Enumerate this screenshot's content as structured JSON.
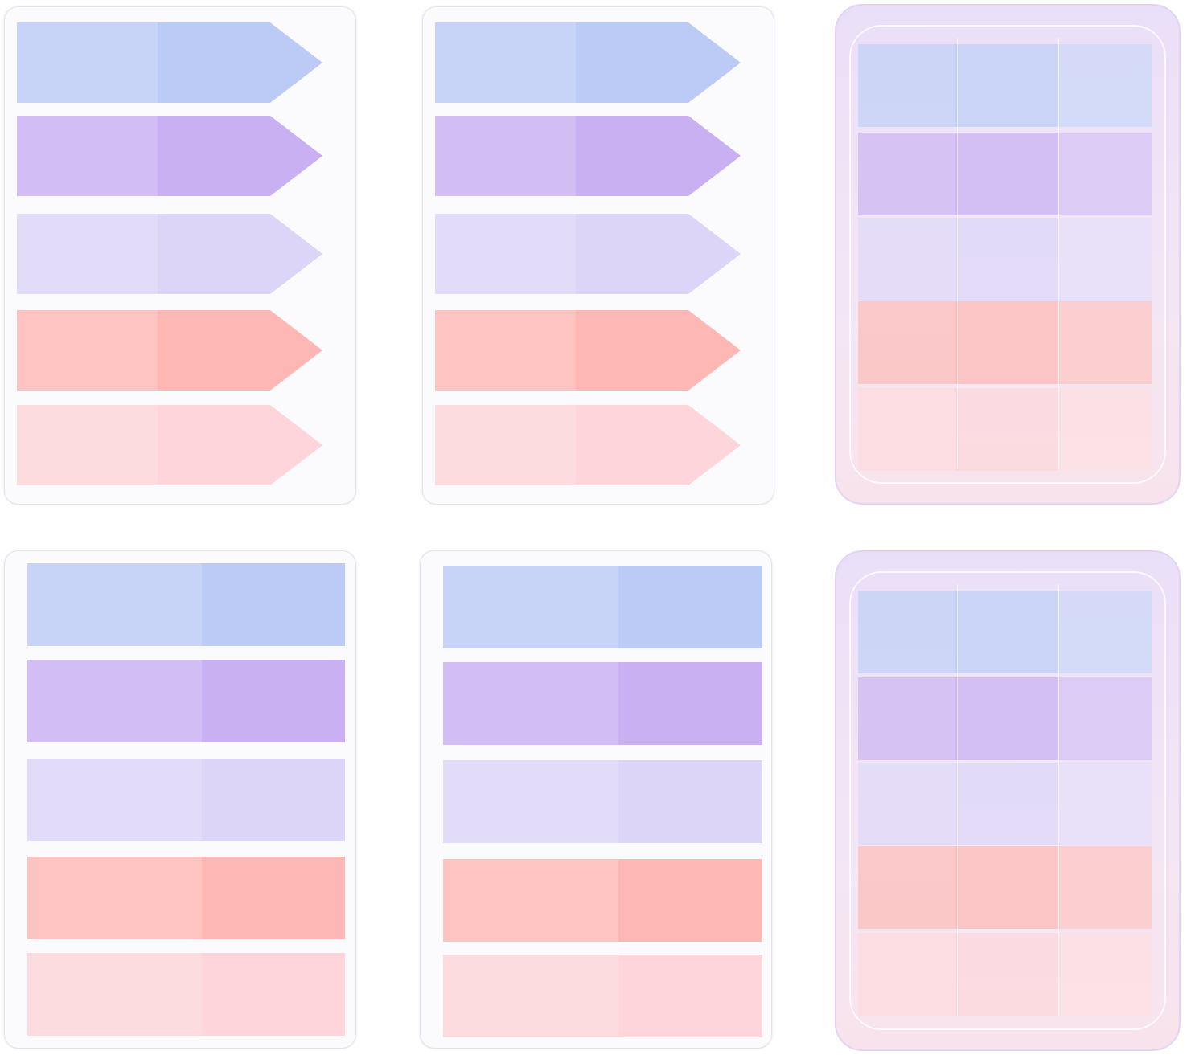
{
  "colors": {
    "blue": "#bccbf6",
    "purple": "#c8b0f2",
    "lavender": "#ddd5f8",
    "salmon": "#fdb7b5",
    "pink": "#fdd5da",
    "case": "#ecdff7"
  },
  "packs": [
    {
      "style": "arrow-tabs-card",
      "tabs": [
        "blue",
        "purple",
        "lavender",
        "salmon",
        "pink"
      ]
    },
    {
      "style": "arrow-tabs-card",
      "tabs": [
        "blue",
        "purple",
        "lavender",
        "salmon",
        "pink"
      ]
    },
    {
      "style": "flag-tabs-case",
      "tabs": [
        "blue",
        "purple",
        "lavender",
        "salmon",
        "pink"
      ]
    },
    {
      "style": "flag-tabs-card",
      "tabs": [
        "blue",
        "purple",
        "lavender",
        "salmon",
        "pink"
      ]
    },
    {
      "style": "flag-tabs-card",
      "tabs": [
        "blue",
        "purple",
        "lavender",
        "salmon",
        "pink"
      ]
    },
    {
      "style": "flag-tabs-case",
      "tabs": [
        "blue",
        "purple",
        "lavender",
        "salmon",
        "pink"
      ]
    }
  ]
}
